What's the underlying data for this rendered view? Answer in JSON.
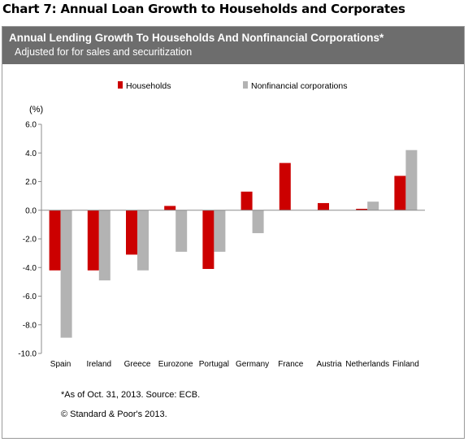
{
  "header": {
    "outer_title": "Chart 7:  Annual Loan Growth to Households and Corporates",
    "chart_title": "Annual Lending Growth To Households  And Nonfinancial Corporations*",
    "chart_subtitle": "Adjusted for for sales and securitization"
  },
  "footer": {
    "note": "*As of Oct. 31, 2013. Source: ECB.",
    "copyright": "© Standard & Poor's 2013."
  },
  "colors": {
    "households": "#cc0000",
    "corporations": "#b3b3b3",
    "header_band": "#6d6d6d"
  },
  "chart_data": {
    "type": "bar",
    "ylabel": "(%)",
    "ylim": [
      -10,
      6
    ],
    "yticks": [
      "6.0",
      "4.0",
      "2.0",
      "0.0",
      "-2.0",
      "-4.0",
      "-6.0",
      "-8.0",
      "-10.0"
    ],
    "ytick_values": [
      6,
      4,
      2,
      0,
      -2,
      -4,
      -6,
      -8,
      -10
    ],
    "legend_position": "top",
    "categories": [
      "Spain",
      "Ireland",
      "Greece",
      "Eurozone",
      "Portugal",
      "Germany",
      "France",
      "Austria",
      "Netherlands",
      "Finland"
    ],
    "series": [
      {
        "name": "Households",
        "values": [
          -4.2,
          -4.2,
          -3.1,
          0.3,
          -4.1,
          1.3,
          3.3,
          0.5,
          0.1,
          2.4
        ]
      },
      {
        "name": "Nonfinancial corporations",
        "values": [
          -8.9,
          -4.9,
          -4.2,
          -2.9,
          -2.9,
          -1.6,
          null,
          null,
          0.6,
          4.2
        ]
      }
    ]
  }
}
